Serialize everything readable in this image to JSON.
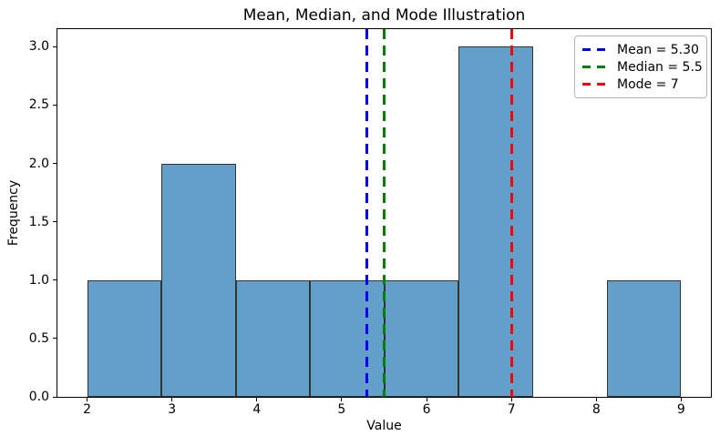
{
  "chart_data": {
    "type": "histogram",
    "title": "Mean, Median, and Mode Illustration",
    "xlabel": "Value",
    "ylabel": "Frequency",
    "bin_edges": [
      2,
      2.875,
      3.75,
      4.625,
      5.5,
      6.375,
      7.25,
      8.125,
      9
    ],
    "frequencies": [
      1,
      2,
      1,
      1,
      1,
      3,
      0,
      1
    ],
    "xlim": [
      1.65,
      9.35
    ],
    "ylim": [
      0,
      3.15
    ],
    "x_ticks": [
      {
        "value": 2,
        "label": "2"
      },
      {
        "value": 3,
        "label": "3"
      },
      {
        "value": 4,
        "label": "4"
      },
      {
        "value": 5,
        "label": "5"
      },
      {
        "value": 6,
        "label": "6"
      },
      {
        "value": 7,
        "label": "7"
      },
      {
        "value": 8,
        "label": "8"
      },
      {
        "value": 9,
        "label": "9"
      }
    ],
    "y_ticks": [
      {
        "value": 0.0,
        "label": "0.0"
      },
      {
        "value": 0.5,
        "label": "0.5"
      },
      {
        "value": 1.0,
        "label": "1.0"
      },
      {
        "value": 1.5,
        "label": "1.5"
      },
      {
        "value": 2.0,
        "label": "2.0"
      },
      {
        "value": 2.5,
        "label": "2.5"
      },
      {
        "value": 3.0,
        "label": "3.0"
      }
    ],
    "grid": false,
    "colors": {
      "bar_fill": "#62a0ca",
      "bar_edge": "#333333",
      "legend_border": "#b3b3b3"
    },
    "ref_lines": [
      {
        "name": "mean",
        "value": 5.3,
        "color": "#0000ff",
        "label": "Mean = 5.30"
      },
      {
        "name": "median",
        "value": 5.5,
        "color": "#008000",
        "label": "Median = 5.5"
      },
      {
        "name": "mode",
        "value": 7,
        "color": "#ff0000",
        "label": "Mode = 7"
      }
    ],
    "legend_position": "upper right"
  }
}
